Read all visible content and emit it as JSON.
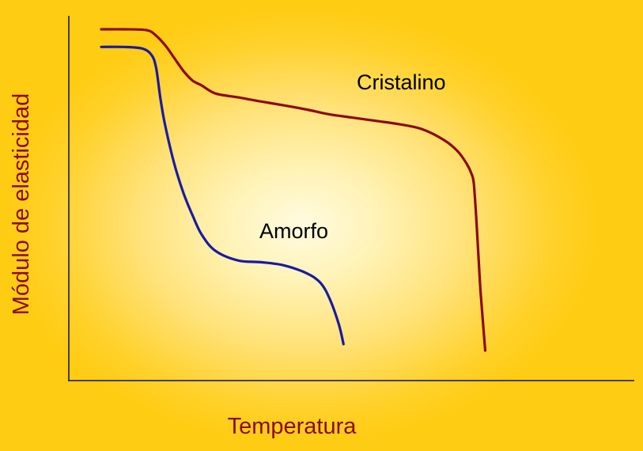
{
  "chart_data": {
    "type": "line",
    "title": "",
    "xlabel": "Temperatura",
    "ylabel": "Módulo de elasticidad",
    "xlim": [
      0,
      100
    ],
    "ylim": [
      0,
      100
    ],
    "grid": false,
    "legend": "none",
    "series": [
      {
        "name": "Cristalino",
        "color": "#8b0a0a",
        "x": [
          0,
          5,
          10,
          12,
          14,
          16,
          18,
          20,
          22,
          25,
          30,
          35,
          40,
          45,
          50,
          55,
          60,
          65,
          70,
          75,
          78,
          80,
          81,
          81.5,
          82,
          82.5,
          83,
          84
        ],
        "y": [
          100,
          100,
          99.7,
          98,
          95,
          91,
          87,
          84,
          82.5,
          80,
          78.8,
          77.5,
          76.3,
          75,
          73.5,
          72.5,
          71.5,
          70.5,
          69,
          65.5,
          62,
          58,
          55,
          52,
          42,
          30,
          18,
          0
        ]
      },
      {
        "name": "Amorfo",
        "color": "#1a1aa3",
        "x": [
          0,
          5,
          9,
          11,
          12,
          13,
          14,
          16,
          18,
          20,
          22,
          25,
          30,
          35,
          40,
          45,
          48,
          50,
          52,
          53
        ],
        "y": [
          94.5,
          94.5,
          94,
          92,
          88,
          78,
          70,
          58,
          49,
          42,
          36,
          31,
          28,
          27.5,
          26.5,
          24,
          21,
          16,
          8,
          2
        ]
      }
    ]
  }
}
